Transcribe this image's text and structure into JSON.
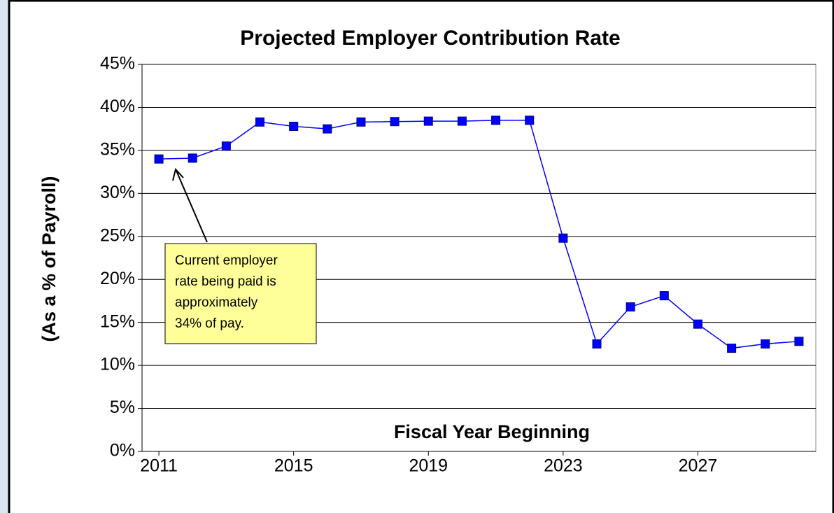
{
  "chart_data": {
    "type": "line",
    "title": "Projected Employer Contribution Rate",
    "y_label": "(As a % of Payroll)",
    "x_label": "Fiscal Year Beginning",
    "x": [
      2011,
      2012,
      2013,
      2014,
      2015,
      2016,
      2017,
      2018,
      2019,
      2020,
      2021,
      2022,
      2023,
      2024,
      2025,
      2026,
      2027,
      2028,
      2029,
      2030
    ],
    "series": [
      {
        "name": "Employer Contribution Rate",
        "color": "#0000ff",
        "values": [
          34.0,
          34.1,
          35.5,
          38.3,
          37.8,
          37.5,
          38.3,
          38.35,
          38.4,
          38.4,
          38.5,
          38.5,
          24.8,
          12.5,
          16.8,
          18.1,
          14.8,
          12.0,
          12.5,
          12.8
        ]
      }
    ],
    "xlim": [
      2010.5,
      2030.5
    ],
    "xticks": [
      2011,
      2015,
      2019,
      2023,
      2027
    ],
    "ylim": [
      0,
      45
    ],
    "yticks": [
      {
        "value": 0,
        "label": "0%"
      },
      {
        "value": 5,
        "label": "5%"
      },
      {
        "value": 10,
        "label": "10%"
      },
      {
        "value": 15,
        "label": "15%"
      },
      {
        "value": 20,
        "label": "20%"
      },
      {
        "value": 25,
        "label": "25%"
      },
      {
        "value": 30,
        "label": "30%"
      },
      {
        "value": 35,
        "label": "35%"
      },
      {
        "value": 40,
        "label": "40%"
      },
      {
        "value": 45,
        "label": "45%"
      }
    ],
    "grid": true,
    "annotation": {
      "lines": [
        "Current employer",
        "rate being paid is",
        "approximately",
        "34% of pay."
      ]
    }
  }
}
